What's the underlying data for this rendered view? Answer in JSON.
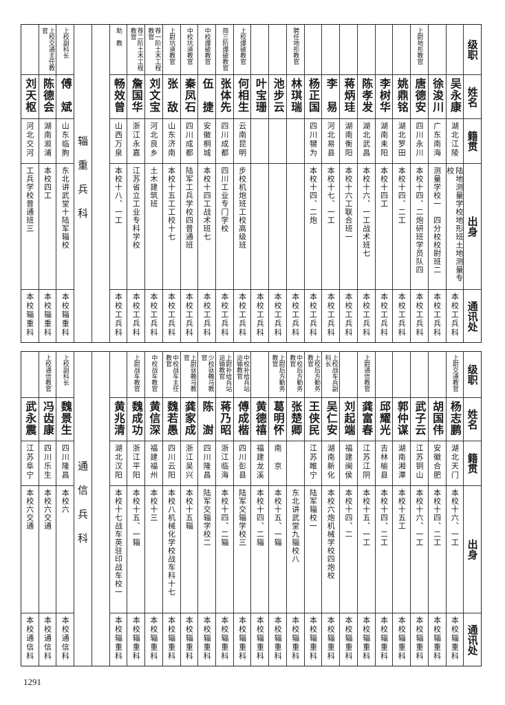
{
  "headers": {
    "rank": "级职",
    "name": "姓名",
    "origin": "籍贯",
    "education": "出身",
    "address": "通讯处"
  },
  "top_table": {
    "groups": [
      {
        "people": [
          {
            "rank": "",
            "name": "吴永康",
            "origin": "湖北江陵",
            "education": "陆地测量学校地形班土地测量专校",
            "address": "本校工兵科"
          },
          {
            "rank": "",
            "name": "徐浚川",
            "origin": "广东南海",
            "education": "测量学校一　四分校校尉班二",
            "address": "本校工兵科"
          },
          {
            "rank": "上尉地形教官",
            "name": "唐德安",
            "origin": "四川永川",
            "education": "本校十四、二炮研班学员队四",
            "address": "本校工兵科"
          },
          {
            "rank": "",
            "name": "姚鼎铭",
            "origin": "湖北罗田",
            "education": "本校十四、二工",
            "address": "本校工兵科"
          },
          {
            "rank": "",
            "name": "李树华",
            "origin": "湖南耒阳",
            "education": "本校十四工",
            "address": "本校工兵科"
          },
          {
            "rank": "",
            "name": "陈孝发",
            "origin": "湖北武昌",
            "education": "本校十六、一工战术班七",
            "address": "本校工兵科"
          },
          {
            "rank": "",
            "name": "蒋炳珪",
            "origin": "湖南衡阳",
            "education": "本校十六工联合班一",
            "address": "本校工兵科"
          },
          {
            "rank": "",
            "name": "李　易",
            "origin": "河北易县",
            "education": "本校十七、一工",
            "address": "本校工兵科"
          },
          {
            "rank": "",
            "name": "杨正国",
            "origin": "四川犍为",
            "education": "本校十四、二炮",
            "address": "本校工兵科"
          },
          {
            "rank": "聘任地形教官",
            "name": "林琪瑞",
            "origin": "",
            "education": "",
            "address": "本校工兵科"
          },
          {
            "rank": "",
            "name": "池步云",
            "origin": "",
            "education": "",
            "address": "本校工兵科"
          },
          {
            "rank": "",
            "name": "叶宝珊",
            "origin": "",
            "education": "",
            "address": "本校工兵科"
          },
          {
            "rank": "上校爆破教官",
            "name": "何相生",
            "origin": "云南昆明",
            "education": "步校机炮班工校高级班",
            "address": "本校工兵科"
          },
          {
            "rank": "简三阶爆破教官",
            "name": "张体先",
            "origin": "四川成都",
            "education": "四川工业专门学校",
            "address": "本校工兵科"
          },
          {
            "rank": "中校爆破教官",
            "name": "伍　捷",
            "origin": "安徽桐城",
            "education": "本校十四工战术班七",
            "address": "本校工兵科"
          },
          {
            "rank": "中校坑道教官",
            "name": "秦凤石",
            "origin": "四川成都",
            "education": "陆军工兵学校四普通班",
            "address": "本校工兵科"
          },
          {
            "rank": "上尉坑道教官",
            "name": "张　敌",
            "origin": "山东济南",
            "education": "本校十五工工校十七",
            "address": "本校工兵科"
          },
          {
            "rank": "荐一阶土木工程教官",
            "name": "刘文宝",
            "origin": "河北良乡",
            "education": "土木建筑班",
            "address": "本校工兵科"
          },
          {
            "rank": "荐二阶土木工程教官",
            "name": "詹国华",
            "origin": "浙江永嘉",
            "education": "江苏省立工业专科学校",
            "address": "本校工兵科"
          },
          {
            "rank": "助　教",
            "name": "畅效曾",
            "origin": "山西万泉",
            "education": "本校十八、一工",
            "address": "本校工兵科"
          }
        ]
      },
      {
        "section": "辎重兵科",
        "people": [
          {
            "rank": "上校副科长",
            "name": "傅　斌",
            "origin": "山东临朐",
            "education": "东北讲武堂十陆军辎校",
            "address": "本校辎重科"
          },
          {
            "rank": "上校交通主任教官",
            "name": "陈德会",
            "origin": "湖南溆浦",
            "education": "本校四工",
            "address": "本校辎重科"
          },
          {
            "rank": "",
            "name": "刘天枢",
            "origin": "河北交河",
            "education": "工兵学校普通班三",
            "address": "本校辎重科"
          }
        ]
      }
    ]
  },
  "bottom_table": {
    "groups": [
      {
        "people": [
          {
            "rank": "上尉交通教官",
            "name": "杨志鹏",
            "origin": "湖北天门",
            "education": "本校十六、一工",
            "address": "本校辎重科"
          },
          {
            "rank": "",
            "name": "胡国伟",
            "origin": "安徽合肥",
            "education": "本校十四、二工",
            "address": "本校辎重科"
          },
          {
            "rank": "",
            "name": "武子云",
            "origin": "江苏铜山",
            "education": "本校十六、一工",
            "address": "本校辎重科"
          },
          {
            "rank": "",
            "name": "郭仲谋",
            "origin": "湖南湘潭",
            "education": "本校十五工",
            "address": "本校辎重科"
          },
          {
            "rank": "",
            "name": "邱耀光",
            "origin": "吉林榆县",
            "education": "本校十四、二工",
            "address": "本校辎重科"
          },
          {
            "rank": "上尉通信教官",
            "name": "龚富春",
            "origin": "江苏江阴",
            "education": "本校十五、一工",
            "address": "本校辎重科"
          },
          {
            "rank": "",
            "name": "刘起端",
            "origin": "福建闽侯",
            "education": "本校十四、二",
            "address": "本校辎重科"
          },
          {
            "rank": "上校战车兵副科长",
            "name": "吴仁安",
            "origin": "湖南新化",
            "education": "本校六炮机械学校四炮校",
            "address": "本校辎重科"
          },
          {
            "rank": "上校后方勤务教官",
            "name": "王侠民",
            "origin": "江苏睢宁",
            "education": "陆军辎校一",
            "address": "本校辎重科"
          },
          {
            "rank": "中校后方勤务教官",
            "name": "张楚卿",
            "origin": "",
            "education": "东北讲武堂九辎校八",
            "address": "本校辎重科"
          },
          {
            "rank": "上尉后方勤务教官",
            "name": "葛明怀",
            "origin": "南　京",
            "education": "本校十五、一辎",
            "address": "本校辎重科"
          },
          {
            "rank": "",
            "name": "黄德禧",
            "origin": "福建龙溪",
            "education": "本校十四、二辎",
            "address": "本校辎重科"
          },
          {
            "rank": "中校补给兵站运输教官",
            "name": "傅成楷",
            "origin": "四川彭县",
            "education": "陆军交辎学校三",
            "address": "本校辎重科"
          },
          {
            "rank": "上尉补给兵站运输教官",
            "name": "蒋乃昭",
            "origin": "浙江临海",
            "education": "本校十四、二辎",
            "address": "本校辎重科"
          },
          {
            "rank": "少校驮輓马教官",
            "name": "陈　澍",
            "origin": "四川隆昌",
            "education": "陆军交辎学校二",
            "address": "本校辎重科"
          },
          {
            "rank": "上尉驮輓马教官",
            "name": "龚家成",
            "origin": "浙江吴兴",
            "education": "本校十五辎",
            "address": "本校辎重科"
          },
          {
            "rank": "中校战车主任教官",
            "name": "魏若愚",
            "origin": "四川云阳",
            "education": "本校八机械化学校战车科十七",
            "address": "本校辎重科"
          },
          {
            "rank": "中校战车教官",
            "name": "黄信深",
            "origin": "福建福州",
            "education": "本校十三",
            "address": "本校辎重科"
          },
          {
            "rank": "上尉战车教官",
            "name": "魏成功",
            "origin": "浙江平阳",
            "education": "本校十五、一辎",
            "address": "本校辎重科"
          },
          {
            "rank": "",
            "name": "黄兆清",
            "origin": "湖北汉阳",
            "education": "本校十七战车英驻印战车校一",
            "address": "本校辎重科"
          }
        ]
      },
      {
        "section": "通信兵科",
        "people": [
          {
            "rank": "上校副科长",
            "name": "魏景生",
            "origin": "四川隆昌",
            "education": "本校六",
            "address": "本校通信科"
          },
          {
            "rank": "上校通信教官",
            "name": "冯齿康",
            "origin": "四川乐生",
            "education": "本校六交通",
            "address": "本校通信科"
          },
          {
            "rank": "",
            "name": "武永震",
            "origin": "江苏阜宁",
            "education": "本校六交通",
            "address": "本校通信科"
          }
        ]
      }
    ]
  },
  "page_number": "1291"
}
